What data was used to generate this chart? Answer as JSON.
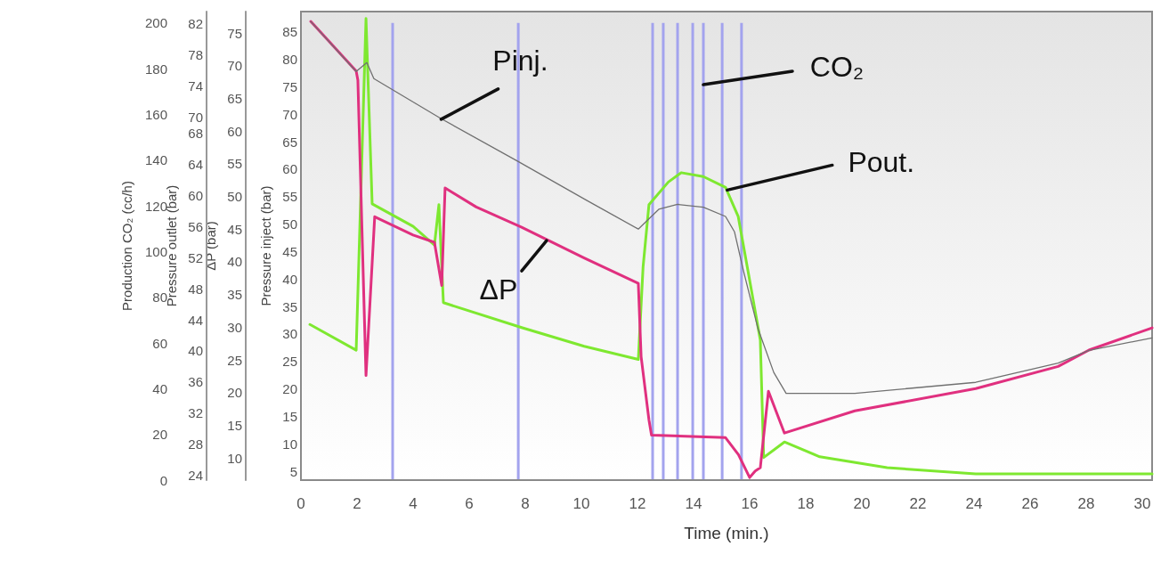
{
  "chart_data": [
    {
      "type": "bar",
      "ylabel": "Production CO₂ (cc/h)",
      "xlim": [
        0,
        30.35
      ],
      "xticks": [
        0,
        2,
        4,
        6,
        8,
        10,
        12,
        14,
        16,
        18,
        20,
        22,
        24,
        26,
        28,
        30
      ],
      "tick_labels": "y",
      "ylim": [
        0,
        205
      ],
      "yticks": [
        0,
        20,
        40,
        60,
        80,
        100,
        120,
        140,
        160,
        180,
        200
      ],
      "color": "#a3a3ee",
      "x": [
        3.27,
        7.75,
        12.54,
        12.92,
        13.43,
        13.97,
        14.35,
        15.02,
        15.71
      ],
      "values": [
        200,
        200,
        200,
        200,
        200,
        200,
        200,
        200,
        200
      ]
    },
    {
      "type": "line",
      "xlabel": "Time (min.)",
      "ylabel": "Pressure inject (bar)",
      "y2label": "ΔP (bar)",
      "y3label": "Pressure outlet (bar)",
      "xlim": [
        0,
        30.35
      ],
      "xticks": [
        0,
        2,
        4,
        6,
        8,
        10,
        12,
        14,
        16,
        18,
        20,
        22,
        24,
        26,
        28,
        30
      ],
      "ylim": [
        3.4,
        88.7
      ],
      "yticks": [
        5,
        10,
        15,
        20,
        25,
        30,
        35,
        40,
        45,
        50,
        55,
        60,
        65,
        70,
        75,
        80,
        85
      ],
      "y2lim": [
        6.6,
        78.3
      ],
      "y2ticks": [
        10,
        15,
        20,
        25,
        30,
        35,
        40,
        45,
        50,
        55,
        60,
        65,
        70,
        75
      ],
      "y3lim": [
        23.4,
        83.6
      ],
      "y3ticks": [
        24,
        28,
        32,
        36,
        40,
        44,
        48,
        52,
        56,
        60,
        64,
        68,
        70,
        74,
        78,
        82
      ],
      "marker": "none",
      "series": [
        {
          "axis": "y3",
          "color": "#7ee830",
          "x": [
            0.32,
            1.97,
            2.32,
            2.54,
            4.0,
            4.76,
            4.92,
            5.08,
            7.87,
            10.1,
            12.03,
            12.2,
            12.41,
            13.1,
            13.56,
            14.35,
            15.14,
            15.59,
            15.94,
            16.38,
            16.5,
            17.24,
            18.5,
            20.9,
            24.06,
            30.35
          ],
          "values": [
            43.4,
            40.1,
            82.7,
            58.9,
            56.0,
            53.6,
            58.8,
            46.2,
            43.0,
            40.6,
            38.9,
            50.8,
            58.8,
            61.7,
            62.9,
            62.4,
            61.0,
            57.3,
            50.3,
            41.4,
            26.3,
            28.3,
            26.4,
            25.0,
            24.2,
            24.2
          ]
        },
        {
          "axis": "y2",
          "color": "#e0307f",
          "x": [
            0.35,
            1.97,
            2.03,
            2.32,
            2.63,
            4.0,
            4.76,
            5.02,
            5.14,
            6.25,
            7.87,
            10.1,
            12.03,
            12.13,
            12.41,
            12.5,
            15.14,
            15.6,
            16.0,
            16.2,
            16.38,
            16.67,
            17.24,
            19.75,
            24.06,
            27.0,
            28.1,
            30.35
          ],
          "values": [
            76.8,
            69.2,
            67.8,
            22.6,
            46.9,
            44.1,
            43.0,
            36.4,
            51.3,
            48.4,
            45.3,
            40.6,
            36.7,
            25.5,
            15.8,
            13.5,
            13.1,
            10.5,
            7.0,
            8.0,
            8.5,
            20.2,
            13.8,
            17.2,
            20.6,
            24.0,
            26.5,
            29.9
          ]
        },
        {
          "color": "#707070",
          "x": [
            0.35,
            1.97,
            2.35,
            2.6,
            5.0,
            7.68,
            10.2,
            12.03,
            12.76,
            13.43,
            14.35,
            15.14,
            15.46,
            15.78,
            16.29,
            16.86,
            17.3,
            19.75,
            24.06,
            27.0,
            28.1,
            30.35
          ],
          "values": [
            86.9,
            77.8,
            79.4,
            76.5,
            69.2,
            61.6,
            54.3,
            49.1,
            52.7,
            53.6,
            53.1,
            51.4,
            48.6,
            41.5,
            31.1,
            23.0,
            19.2,
            19.2,
            21.2,
            24.7,
            27.0,
            29.3
          ]
        }
      ],
      "annotations": [
        {
          "text": "Pinj.",
          "x": 5.0,
          "y": 69.1
        },
        "CO₂",
        {
          "text": "Pout.",
          "x": 15.2,
          "y": 56.2
        },
        {
          "text": "ΔP",
          "x": 8.76,
          "y": 47.0
        }
      ]
    }
  ]
}
